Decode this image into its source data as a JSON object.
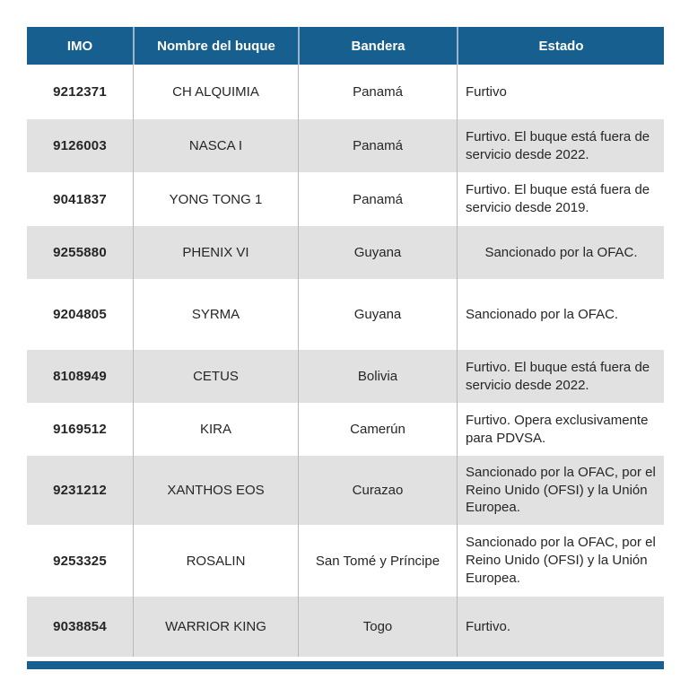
{
  "colors": {
    "header_bg": "#175f8f",
    "header_text": "#ffffff",
    "row_alt_bg": "#e1e1e1",
    "divider": "#b9b9b9",
    "body_text": "#262626"
  },
  "table": {
    "columns": [
      {
        "key": "imo",
        "label": "IMO"
      },
      {
        "key": "nombre",
        "label": "Nombre del buque"
      },
      {
        "key": "bandera",
        "label": "Bandera"
      },
      {
        "key": "estado",
        "label": "Estado"
      }
    ],
    "rows": [
      {
        "imo": "9212371",
        "nombre": "CH ALQUIMIA",
        "bandera": "Panamá",
        "estado": "Furtivo"
      },
      {
        "imo": "9126003",
        "nombre": "NASCA I",
        "bandera": "Panamá",
        "estado": "Furtivo. El buque está fuera de servicio desde 2022."
      },
      {
        "imo": "9041837",
        "nombre": "YONG TONG 1",
        "bandera": "Panamá",
        "estado": "Furtivo. El buque está fuera de servicio desde 2019."
      },
      {
        "imo": "9255880",
        "nombre": "PHENIX VI",
        "bandera": "Guyana",
        "estado": "Sancionado por la OFAC."
      },
      {
        "imo": "9204805",
        "nombre": "SYRMA",
        "bandera": "Guyana",
        "estado": "Sancionado por la OFAC."
      },
      {
        "imo": "8108949",
        "nombre": "CETUS",
        "bandera": "Bolivia",
        "estado": "Furtivo. El buque está fuera de servicio desde 2022."
      },
      {
        "imo": "9169512",
        "nombre": "KIRA",
        "bandera": "Camerún",
        "estado": "Furtivo. Opera exclusivamente para PDVSA."
      },
      {
        "imo": "9231212",
        "nombre": "XANTHOS EOS",
        "bandera": "Curazao",
        "estado": "Sancionado por la OFAC, por el Reino Unido (OFSI) y la Unión Europea."
      },
      {
        "imo": "9253325",
        "nombre": "ROSALIN",
        "bandera": "San Tomé y Príncipe",
        "estado": "Sancionado por la OFAC, por el Reino Unido (OFSI) y la Unión Europea."
      },
      {
        "imo": "9038854",
        "nombre": "WARRIOR KING",
        "bandera": "Togo",
        "estado": "Furtivo."
      }
    ]
  }
}
